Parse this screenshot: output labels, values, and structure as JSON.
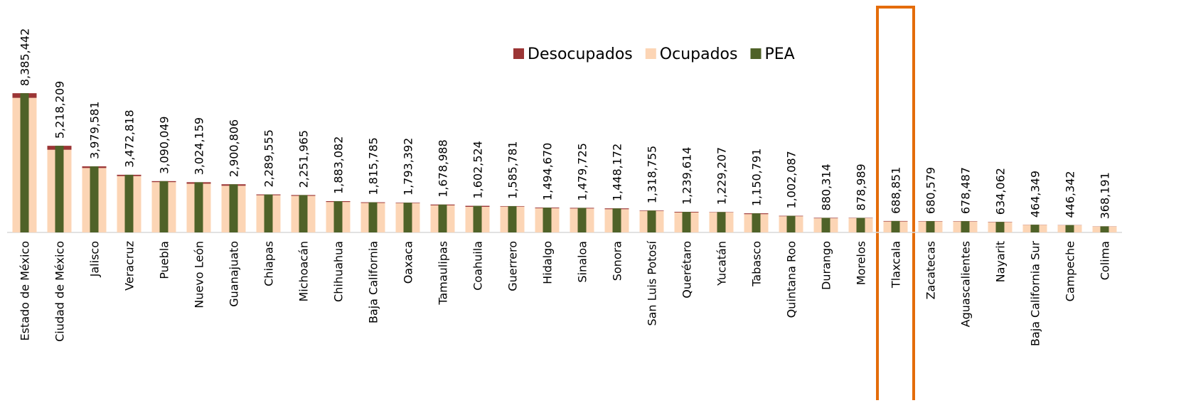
{
  "chart_data": {
    "type": "bar",
    "categories": [
      "Estado de México",
      "Ciudad de México",
      "Jalisco",
      "Veracruz",
      "Puebla",
      "Nuevo León",
      "Guanajuato",
      "Chiapas",
      "Michoacán",
      "Chihuahua",
      "Baja California",
      "Oaxaca",
      "Tamaulipas",
      "Coahuila",
      "Guerrero",
      "Hidalgo",
      "Sinaloa",
      "Sonora",
      "San Luis Potosí",
      "Querétaro",
      "Yucatán",
      "Tabasco",
      "Quintana Roo",
      "Durango",
      "Morelos",
      "Tlaxcala",
      "Zacatecas",
      "Aguascalientes",
      "Nayarit",
      "Baja California Sur",
      "Campeche",
      "Colima"
    ],
    "series": [
      {
        "name": "Desocupados",
        "color": "#9b3535",
        "values": [
          280000,
          240000,
          100000,
          80000,
          60000,
          90000,
          90000,
          50000,
          50000,
          50000,
          40000,
          30000,
          50000,
          60000,
          30000,
          40000,
          40000,
          50000,
          30000,
          40000,
          20000,
          50000,
          30000,
          30000,
          20000,
          30000,
          20000,
          20000,
          20000,
          10000,
          10000,
          10000
        ]
      },
      {
        "name": "Ocupados",
        "color": "#fcd5b5",
        "values": [
          8105442,
          4978209,
          3879581,
          3392818,
          3030049,
          2934159,
          2810806,
          2239555,
          2201965,
          1833082,
          1775785,
          1763392,
          1628988,
          1542524,
          1555781,
          1454670,
          1439725,
          1398172,
          1288755,
          1199614,
          1209207,
          1100791,
          972087,
          850314,
          858989,
          658851,
          660579,
          658487,
          614062,
          454349,
          436342,
          358191
        ]
      },
      {
        "name": "PEA",
        "color": "#4f6228",
        "values": [
          8385442,
          5218209,
          3979581,
          3472818,
          3090049,
          3024159,
          2900806,
          2289555,
          2251965,
          1883082,
          1815785,
          1793392,
          1678988,
          1602524,
          1585781,
          1494670,
          1479725,
          1448172,
          1318755,
          1239614,
          1229207,
          1150791,
          1002087,
          880314,
          878989,
          688851,
          680579,
          678487,
          634062,
          464349,
          446342,
          368191
        ],
        "value_labels": [
          "8,385,442",
          "5,218,209",
          "3,979,581",
          "3,472,818",
          "3,090,049",
          "3,024,159",
          "2,900,806",
          "2,289,555",
          "2,251,965",
          "1,883,082",
          "1,815,785",
          "1,793,392",
          "1,678,988",
          "1,602,524",
          "1,585,781",
          "1,494,670",
          "1,479,725",
          "1,448,172",
          "1,318,755",
          "1,239,614",
          "1,229,207",
          "1,150,791",
          "1,002,087",
          "880,314",
          "878,989",
          "688,851",
          "680,579",
          "678,487",
          "634,062",
          "464,349",
          "446,342",
          "368,191"
        ]
      }
    ],
    "ylim": [
      0,
      14000000
    ],
    "legend": "top"
  }
}
